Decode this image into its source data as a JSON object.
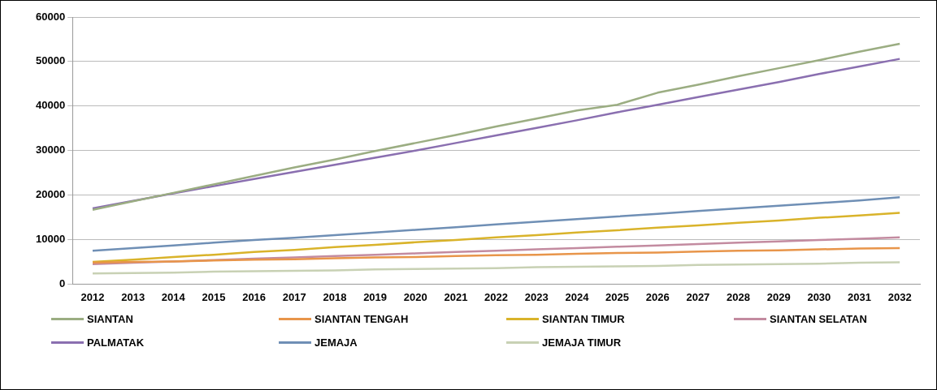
{
  "chart_data": {
    "type": "line",
    "categories": [
      "2012",
      "2013",
      "2014",
      "2015",
      "2016",
      "2017",
      "2018",
      "2019",
      "2020",
      "2021",
      "2022",
      "2023",
      "2024",
      "2025",
      "2026",
      "2027",
      "2028",
      "2029",
      "2030",
      "2031",
      "2032"
    ],
    "series": [
      {
        "name": "SIANTAN",
        "color": "#9bad82",
        "values": [
          16700,
          18600,
          20500,
          22400,
          24300,
          26200,
          28000,
          29900,
          31700,
          33500,
          35400,
          37200,
          39000,
          40300,
          43000,
          44800,
          46700,
          48500,
          50300,
          52200,
          54000
        ]
      },
      {
        "name": "SIANTAN TENGAH",
        "color": "#e8954a",
        "values": [
          4800,
          5000,
          5100,
          5300,
          5500,
          5600,
          5800,
          6000,
          6100,
          6300,
          6500,
          6600,
          6800,
          7000,
          7100,
          7300,
          7500,
          7600,
          7800,
          8000,
          8100
        ]
      },
      {
        "name": "SIANTAN TIMUR",
        "color": "#d9b32a",
        "values": [
          5000,
          5500,
          6100,
          6600,
          7200,
          7700,
          8300,
          8800,
          9400,
          9900,
          10500,
          11000,
          11600,
          12100,
          12700,
          13200,
          13800,
          14300,
          14900,
          15400,
          16000
        ]
      },
      {
        "name": "SIANTAN SELATAN",
        "color": "#c38ba0",
        "values": [
          4500,
          4800,
          5100,
          5400,
          5700,
          6000,
          6300,
          6600,
          6900,
          7200,
          7500,
          7800,
          8100,
          8400,
          8700,
          9000,
          9300,
          9600,
          9900,
          10200,
          10500
        ]
      },
      {
        "name": "PALMATAK",
        "color": "#8a6fb0",
        "values": [
          17000,
          18700,
          20400,
          22000,
          23600,
          25200,
          26800,
          28400,
          30000,
          31700,
          33400,
          35100,
          36800,
          38600,
          40300,
          42000,
          43700,
          45400,
          47200,
          48900,
          50600
        ]
      },
      {
        "name": "JEMAJA",
        "color": "#6f8fb5",
        "values": [
          7500,
          8100,
          8700,
          9300,
          9900,
          10400,
          11000,
          11600,
          12200,
          12800,
          13400,
          14000,
          14600,
          15200,
          15800,
          16400,
          17000,
          17600,
          18200,
          18800,
          19500
        ]
      },
      {
        "name": "JEMAJA TIMUR",
        "color": "#c8d1b4",
        "values": [
          2400,
          2500,
          2600,
          2800,
          2900,
          3000,
          3100,
          3300,
          3400,
          3500,
          3600,
          3800,
          3900,
          4000,
          4100,
          4300,
          4400,
          4500,
          4600,
          4800,
          4900
        ]
      }
    ],
    "ylim": [
      0,
      60000
    ],
    "yticks": [
      0,
      10000,
      20000,
      30000,
      40000,
      50000,
      60000
    ],
    "grid": "y",
    "legend": "bottom",
    "marker": "none",
    "line_style": "solid"
  }
}
